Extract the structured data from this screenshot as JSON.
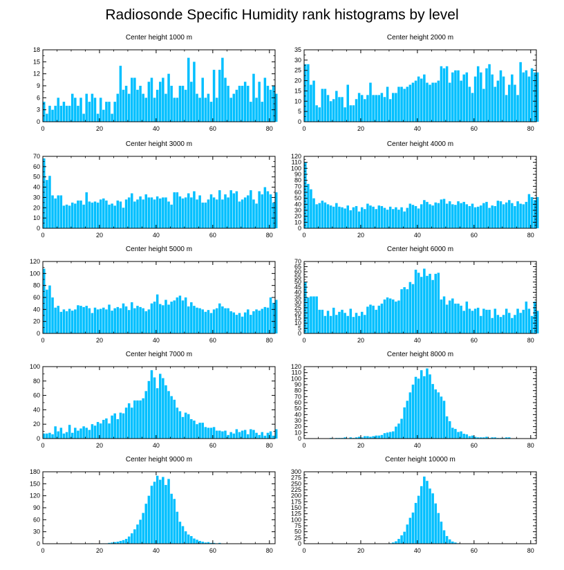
{
  "title": "Radiosonde Specific Humidity rank histograms by level",
  "bar_color": "#00bfff",
  "chart_data": [
    {
      "type": "bar",
      "title": "Center height 1000 m",
      "x_ticks": [
        0,
        20,
        40,
        60,
        80
      ],
      "y_ticks": [
        0,
        3,
        6,
        9,
        12,
        15,
        18
      ],
      "xlim": [
        0,
        82
      ],
      "ylim": [
        0,
        18
      ],
      "values": [
        5,
        2,
        4,
        3,
        4,
        6,
        4,
        5,
        4,
        4,
        7,
        6,
        4,
        6,
        2,
        7,
        5,
        7,
        6,
        2,
        6,
        3,
        5,
        5,
        2,
        5,
        7,
        14,
        8,
        9,
        7,
        11,
        11,
        8,
        9,
        7,
        6,
        10,
        11,
        6,
        8,
        10,
        11,
        7,
        12,
        9,
        6,
        6,
        9,
        9,
        8,
        16,
        10,
        15,
        7,
        6,
        11,
        6,
        7,
        5,
        13,
        6,
        13,
        16,
        11,
        9,
        6,
        7,
        8,
        9,
        9,
        10,
        9,
        5,
        12,
        6,
        10,
        5,
        11,
        9,
        8,
        9,
        7
      ]
    },
    {
      "type": "bar",
      "title": "Center height 2000 m",
      "x_ticks": [
        0,
        20,
        40,
        60,
        80
      ],
      "y_ticks": [
        0,
        5,
        10,
        15,
        20,
        25,
        30,
        35
      ],
      "xlim": [
        0,
        82
      ],
      "ylim": [
        0,
        35
      ],
      "values": [
        28,
        28,
        18,
        20,
        8,
        7,
        16,
        16,
        13,
        10,
        11,
        15,
        12,
        12,
        7,
        18,
        8,
        8,
        11,
        14,
        13,
        11,
        13,
        19,
        13,
        13,
        13,
        14,
        12,
        17,
        11,
        14,
        14,
        17,
        17,
        16,
        17,
        18,
        19,
        20,
        22,
        21,
        23,
        19,
        18,
        19,
        19,
        20,
        27,
        26,
        27,
        19,
        24,
        25,
        25,
        20,
        23,
        24,
        17,
        14,
        22,
        27,
        24,
        16,
        26,
        28,
        23,
        17,
        20,
        25,
        22,
        13,
        18,
        23,
        18,
        13,
        29,
        24,
        25,
        22,
        26,
        24,
        24
      ]
    },
    {
      "type": "bar",
      "title": "Center height 3000 m",
      "x_ticks": [
        0,
        20,
        40,
        60,
        80
      ],
      "y_ticks": [
        0,
        10,
        20,
        30,
        40,
        50,
        60,
        70
      ],
      "xlim": [
        0,
        82
      ],
      "ylim": [
        0,
        70
      ],
      "values": [
        68,
        47,
        51,
        32,
        29,
        32,
        32,
        22,
        23,
        22,
        25,
        24,
        27,
        27,
        23,
        35,
        26,
        25,
        26,
        25,
        28,
        29,
        27,
        23,
        24,
        22,
        27,
        26,
        20,
        28,
        30,
        34,
        26,
        28,
        31,
        28,
        33,
        30,
        30,
        28,
        31,
        29,
        30,
        30,
        26,
        23,
        35,
        35,
        31,
        29,
        30,
        34,
        30,
        36,
        28,
        32,
        25,
        25,
        28,
        33,
        30,
        28,
        37,
        28,
        33,
        30,
        37,
        34,
        36,
        26,
        28,
        30,
        32,
        37,
        28,
        24,
        36,
        33,
        40,
        36,
        33,
        25,
        35
      ]
    },
    {
      "type": "bar",
      "title": "Center height 4000 m",
      "x_ticks": [
        0,
        20,
        40,
        60,
        80
      ],
      "y_ticks": [
        0,
        10,
        20,
        30,
        40,
        50,
        60,
        70,
        80,
        90,
        100,
        110,
        120
      ],
      "xlim": [
        0,
        82
      ],
      "ylim": [
        0,
        120
      ],
      "values": [
        110,
        74,
        65,
        50,
        40,
        42,
        46,
        43,
        40,
        38,
        36,
        42,
        36,
        35,
        33,
        38,
        30,
        35,
        37,
        28,
        35,
        32,
        41,
        38,
        36,
        32,
        38,
        37,
        34,
        31,
        36,
        32,
        35,
        31,
        35,
        28,
        34,
        41,
        39,
        37,
        33,
        40,
        47,
        44,
        40,
        38,
        43,
        42,
        48,
        49,
        41,
        45,
        40,
        39,
        45,
        42,
        44,
        40,
        37,
        41,
        35,
        36,
        38,
        42,
        44,
        34,
        38,
        37,
        46,
        45,
        40,
        43,
        47,
        42,
        37,
        45,
        41,
        40,
        44,
        57,
        52,
        47,
        52
      ]
    },
    {
      "type": "bar",
      "title": "Center height 5000 m",
      "x_ticks": [
        0,
        20,
        40,
        60,
        80
      ],
      "y_ticks": [
        0,
        20,
        40,
        60,
        80,
        100,
        120
      ],
      "xlim": [
        0,
        82
      ],
      "ylim": [
        0,
        120
      ],
      "values": [
        108,
        73,
        80,
        60,
        43,
        46,
        36,
        40,
        37,
        41,
        38,
        40,
        47,
        46,
        44,
        46,
        42,
        34,
        43,
        40,
        41,
        43,
        40,
        48,
        38,
        42,
        44,
        42,
        50,
        45,
        39,
        52,
        42,
        46,
        44,
        42,
        37,
        40,
        50,
        53,
        65,
        49,
        47,
        56,
        48,
        53,
        55,
        60,
        63,
        55,
        60,
        45,
        52,
        46,
        43,
        42,
        40,
        36,
        39,
        34,
        40,
        42,
        50,
        45,
        42,
        42,
        37,
        35,
        31,
        34,
        28,
        35,
        40,
        31,
        37,
        40,
        38,
        41,
        44,
        43,
        60,
        51,
        56
      ]
    },
    {
      "type": "bar",
      "title": "Center height 6000 m",
      "x_ticks": [
        0,
        20,
        40,
        60,
        80
      ],
      "y_ticks": [
        0,
        5,
        10,
        15,
        20,
        25,
        30,
        35,
        40,
        45,
        50,
        55,
        60,
        65,
        70
      ],
      "xlim": [
        0,
        82
      ],
      "ylim": [
        0,
        70
      ],
      "values": [
        50,
        35,
        36,
        36,
        36,
        23,
        23,
        17,
        22,
        17,
        25,
        18,
        21,
        23,
        20,
        17,
        24,
        16,
        20,
        17,
        21,
        18,
        26,
        28,
        27,
        23,
        27,
        29,
        33,
        35,
        34,
        33,
        31,
        32,
        43,
        45,
        43,
        50,
        48,
        62,
        59,
        55,
        63,
        56,
        58,
        52,
        58,
        59,
        33,
        36,
        28,
        32,
        34,
        29,
        29,
        27,
        22,
        31,
        24,
        22,
        24,
        25,
        17,
        24,
        23,
        23,
        15,
        24,
        18,
        16,
        18,
        24,
        20,
        15,
        18,
        24,
        20,
        23,
        31,
        24,
        17,
        31,
        22
      ]
    },
    {
      "type": "bar",
      "title": "Center height 7000 m",
      "x_ticks": [
        0,
        20,
        40,
        60,
        80
      ],
      "y_ticks": [
        0,
        20,
        40,
        60,
        80,
        100
      ],
      "xlim": [
        0,
        82
      ],
      "ylim": [
        0,
        100
      ],
      "values": [
        7,
        7,
        8,
        6,
        17,
        10,
        15,
        7,
        9,
        19,
        8,
        15,
        11,
        14,
        17,
        15,
        12,
        20,
        18,
        23,
        21,
        26,
        28,
        21,
        32,
        35,
        27,
        36,
        35,
        43,
        49,
        43,
        53,
        53,
        53,
        56,
        66,
        80,
        95,
        85,
        70,
        90,
        84,
        74,
        66,
        59,
        54,
        43,
        38,
        30,
        36,
        34,
        27,
        25,
        20,
        22,
        22,
        16,
        15,
        15,
        16,
        11,
        11,
        10,
        11,
        5,
        9,
        7,
        13,
        9,
        11,
        12,
        6,
        13,
        12,
        8,
        5,
        9,
        4,
        8,
        10,
        4,
        13
      ]
    },
    {
      "type": "bar",
      "title": "Center height 8000 m",
      "x_ticks": [
        0,
        20,
        40,
        60,
        80
      ],
      "y_ticks": [
        0,
        10,
        20,
        30,
        40,
        50,
        60,
        70,
        80,
        90,
        100,
        110,
        120
      ],
      "xlim": [
        0,
        82
      ],
      "ylim": [
        0,
        120
      ],
      "values": [
        0,
        0,
        0,
        0,
        0,
        0,
        0,
        0,
        0,
        1,
        0,
        1,
        1,
        1,
        2,
        0,
        2,
        1,
        2,
        3,
        2,
        4,
        4,
        3,
        4,
        5,
        5,
        6,
        9,
        10,
        11,
        12,
        20,
        25,
        33,
        52,
        63,
        77,
        90,
        103,
        100,
        114,
        104,
        117,
        107,
        91,
        82,
        77,
        70,
        63,
        37,
        29,
        18,
        16,
        11,
        12,
        8,
        7,
        4,
        5,
        3,
        2,
        2,
        2,
        3,
        1,
        2,
        2,
        1,
        1,
        1,
        2,
        2,
        0,
        0,
        0,
        0,
        0,
        0,
        0,
        0,
        0,
        0
      ]
    },
    {
      "type": "bar",
      "title": "Center height 9000 m",
      "x_ticks": [
        0,
        20,
        40,
        60,
        80
      ],
      "y_ticks": [
        0,
        30,
        60,
        90,
        120,
        150,
        180
      ],
      "xlim": [
        0,
        82
      ],
      "ylim": [
        0,
        180
      ],
      "values": [
        0,
        0,
        0,
        0,
        0,
        0,
        0,
        0,
        0,
        0,
        0,
        0,
        0,
        0,
        0,
        0,
        0,
        1,
        0,
        0,
        1,
        1,
        1,
        2,
        3,
        4,
        5,
        7,
        9,
        12,
        18,
        26,
        36,
        48,
        60,
        77,
        100,
        120,
        145,
        155,
        170,
        160,
        167,
        147,
        162,
        125,
        112,
        80,
        55,
        44,
        31,
        23,
        19,
        13,
        10,
        7,
        5,
        3,
        4,
        2,
        2,
        1,
        2,
        0,
        0,
        0,
        0,
        0,
        0,
        0,
        0,
        0,
        0,
        0,
        0,
        0,
        0,
        0,
        0,
        0,
        0,
        0,
        0
      ]
    },
    {
      "type": "bar",
      "title": "Center height 10000 m",
      "x_ticks": [
        0,
        20,
        40,
        60,
        80
      ],
      "y_ticks": [
        0,
        25,
        50,
        75,
        100,
        125,
        150,
        175,
        200,
        225,
        250,
        275,
        300
      ],
      "xlim": [
        0,
        82
      ],
      "ylim": [
        0,
        300
      ],
      "values": [
        0,
        0,
        0,
        0,
        0,
        0,
        0,
        0,
        0,
        0,
        0,
        0,
        0,
        0,
        0,
        0,
        0,
        0,
        0,
        0,
        0,
        0,
        0,
        0,
        0,
        0,
        0,
        0,
        0,
        1,
        2,
        5,
        10,
        20,
        35,
        50,
        80,
        108,
        130,
        170,
        200,
        240,
        280,
        262,
        230,
        210,
        168,
        128,
        92,
        56,
        32,
        18,
        9,
        5,
        2,
        1,
        0,
        0,
        0,
        0,
        0,
        0,
        0,
        0,
        0,
        0,
        0,
        0,
        0,
        0,
        0,
        0,
        0,
        0,
        0,
        0,
        0,
        0,
        0,
        0,
        0,
        0,
        0
      ]
    }
  ]
}
